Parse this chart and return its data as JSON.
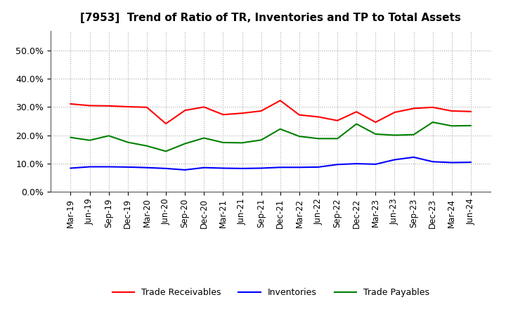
{
  "title": "[7953]  Trend of Ratio of TR, Inventories and TP to Total Assets",
  "x_labels": [
    "Mar-19",
    "Jun-19",
    "Sep-19",
    "Dec-19",
    "Mar-20",
    "Jun-20",
    "Sep-20",
    "Dec-20",
    "Mar-21",
    "Jun-21",
    "Sep-21",
    "Dec-21",
    "Mar-22",
    "Jun-22",
    "Sep-22",
    "Dec-22",
    "Mar-23",
    "Jun-23",
    "Sep-23",
    "Dec-23",
    "Mar-24",
    "Jun-24"
  ],
  "trade_receivables": [
    0.311,
    0.305,
    0.304,
    0.301,
    0.299,
    0.241,
    0.288,
    0.3,
    0.273,
    0.278,
    0.286,
    0.323,
    0.272,
    0.265,
    0.252,
    0.283,
    0.246,
    0.281,
    0.295,
    0.299,
    0.286,
    0.284
  ],
  "inventories": [
    0.083,
    0.088,
    0.088,
    0.087,
    0.085,
    0.082,
    0.077,
    0.085,
    0.083,
    0.082,
    0.083,
    0.086,
    0.086,
    0.087,
    0.096,
    0.099,
    0.097,
    0.113,
    0.122,
    0.106,
    0.103,
    0.104
  ],
  "trade_payables": [
    0.192,
    0.182,
    0.198,
    0.175,
    0.162,
    0.143,
    0.17,
    0.19,
    0.174,
    0.173,
    0.183,
    0.222,
    0.196,
    0.188,
    0.188,
    0.24,
    0.204,
    0.2,
    0.202,
    0.246,
    0.233,
    0.234
  ],
  "colors": {
    "trade_receivables": "#FF0000",
    "inventories": "#0000FF",
    "trade_payables": "#008000"
  },
  "ylim": [
    0.0,
    0.57
  ],
  "yticks": [
    0.0,
    0.1,
    0.2,
    0.3,
    0.4,
    0.5
  ],
  "background_color": "#FFFFFF",
  "grid_color": "#AAAAAA",
  "legend_labels": [
    "Trade Receivables",
    "Inventories",
    "Trade Payables"
  ]
}
